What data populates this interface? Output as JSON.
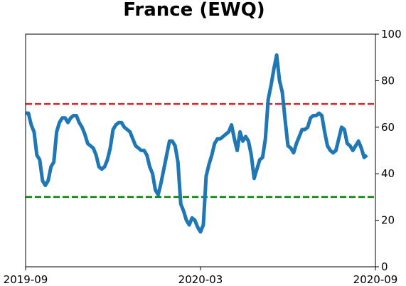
{
  "chart_data": {
    "type": "line",
    "title": "France (EWQ)",
    "categories": [
      "2019-09",
      null,
      null,
      null,
      null,
      null,
      null,
      null,
      null,
      null,
      null,
      null,
      null,
      null,
      null,
      null,
      null,
      null,
      null,
      null,
      null,
      null,
      null,
      null,
      null,
      null,
      null,
      null,
      null,
      null,
      null,
      null,
      null,
      null,
      null,
      null,
      null,
      null,
      null,
      null,
      null,
      null,
      null,
      null,
      null,
      null,
      null,
      null,
      null,
      null,
      null,
      null,
      null,
      null,
      null,
      null,
      null,
      null,
      null,
      null,
      null,
      null,
      "2020-03",
      null,
      null,
      null,
      null,
      null,
      null,
      null,
      null,
      null,
      null,
      null,
      null,
      null,
      null,
      null,
      null,
      null,
      null,
      null,
      null,
      null,
      null,
      null,
      null,
      null,
      null,
      null,
      null,
      null,
      null,
      null,
      null,
      null,
      null,
      null,
      null,
      null,
      null,
      null,
      null,
      null,
      null,
      null,
      null,
      null,
      null,
      null,
      null,
      null,
      null,
      null,
      null,
      null,
      null,
      null,
      null,
      null,
      null,
      null,
      null,
      null,
      "2020-09"
    ],
    "series": [
      {
        "color": "#1f77b4",
        "values": [
          66,
          66,
          61,
          58,
          48,
          46,
          37,
          35,
          37,
          43,
          45,
          58,
          62,
          64,
          64,
          62,
          64,
          65,
          65,
          62,
          60,
          57,
          53,
          52,
          51,
          48,
          43,
          42,
          43,
          46,
          51,
          59,
          61,
          62,
          62,
          60,
          59,
          58,
          55,
          52,
          51,
          50,
          50,
          48,
          43,
          40,
          33,
          31,
          36,
          42,
          48,
          54,
          54,
          52,
          45,
          27,
          24,
          20,
          18,
          21,
          20,
          17,
          15,
          18,
          39,
          44,
          48,
          53,
          55,
          55,
          56,
          57,
          58,
          61,
          55,
          50,
          58,
          54,
          56,
          54,
          48,
          38,
          42,
          46,
          47,
          55,
          72,
          78,
          85,
          91,
          80,
          75,
          63,
          52,
          51,
          49,
          53,
          56,
          59,
          59,
          60,
          64,
          65,
          65,
          66,
          65,
          58,
          52,
          50,
          49,
          50,
          55,
          60,
          59,
          53,
          52,
          50,
          52,
          54,
          51,
          47,
          48,
          null,
          null,
          null
        ]
      }
    ],
    "ylim": [
      0,
      100
    ],
    "yticks": [
      0,
      20,
      40,
      60,
      80,
      100
    ],
    "hlines": [
      {
        "value": 70,
        "color": "#d62728"
      },
      {
        "value": 30,
        "color": "#008000"
      }
    ]
  }
}
